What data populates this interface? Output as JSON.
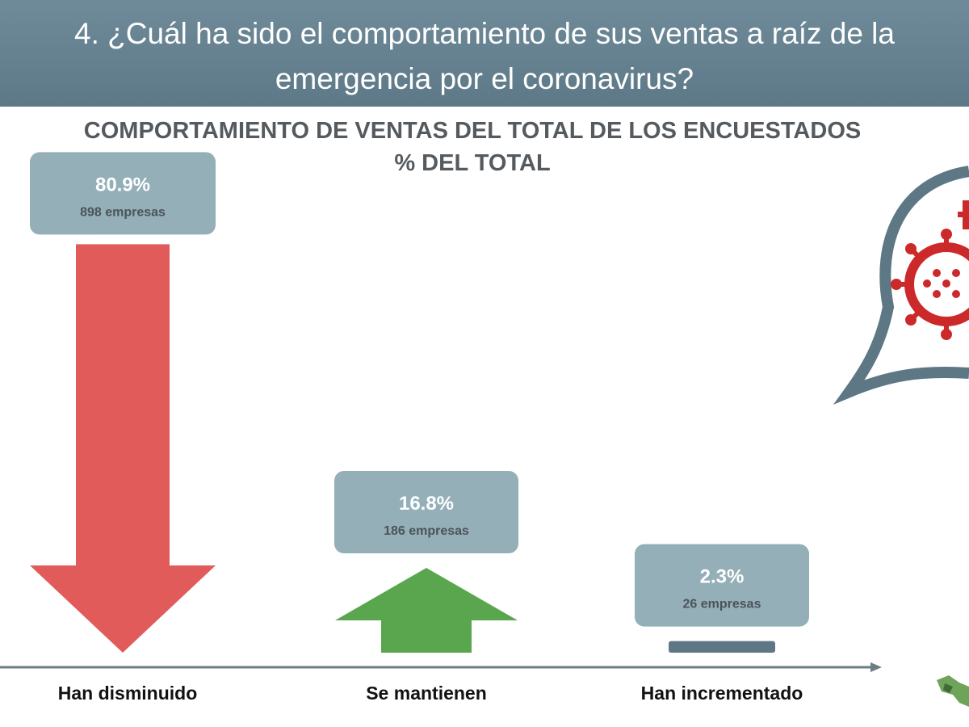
{
  "header": {
    "question": "4. ¿Cuál ha sido el comportamiento de sus ventas a raíz de la emergencia por el coronavirus?"
  },
  "chart_data": {
    "type": "bar",
    "title": "COMPORTAMIENTO DE VENTAS DEL TOTAL DE LOS ENCUESTADOS",
    "subtitle": "% DEL TOTAL",
    "categories": [
      "Han disminuido",
      "Se mantienen",
      "Han incrementado"
    ],
    "values": [
      80.9,
      16.8,
      2.3
    ],
    "value_labels": [
      "80.9%",
      "16.8%",
      "2.3%"
    ],
    "counts": [
      898,
      186,
      26
    ],
    "count_labels": [
      "898 empresas",
      "186 empresas",
      "26 empresas"
    ],
    "marks": [
      "arrow-down",
      "arrow-up",
      "bar"
    ],
    "colors": [
      "#e25b5b",
      "#5aa64f",
      "#5e7785"
    ],
    "label_box_color": "#94afb8"
  },
  "colors": {
    "header_bg": "#5d7887",
    "title_text": "#555a5e",
    "axis": "#6d7c85",
    "virus_red": "#cc2a2a"
  },
  "icons": [
    "coronavirus-icon",
    "map-icon"
  ]
}
